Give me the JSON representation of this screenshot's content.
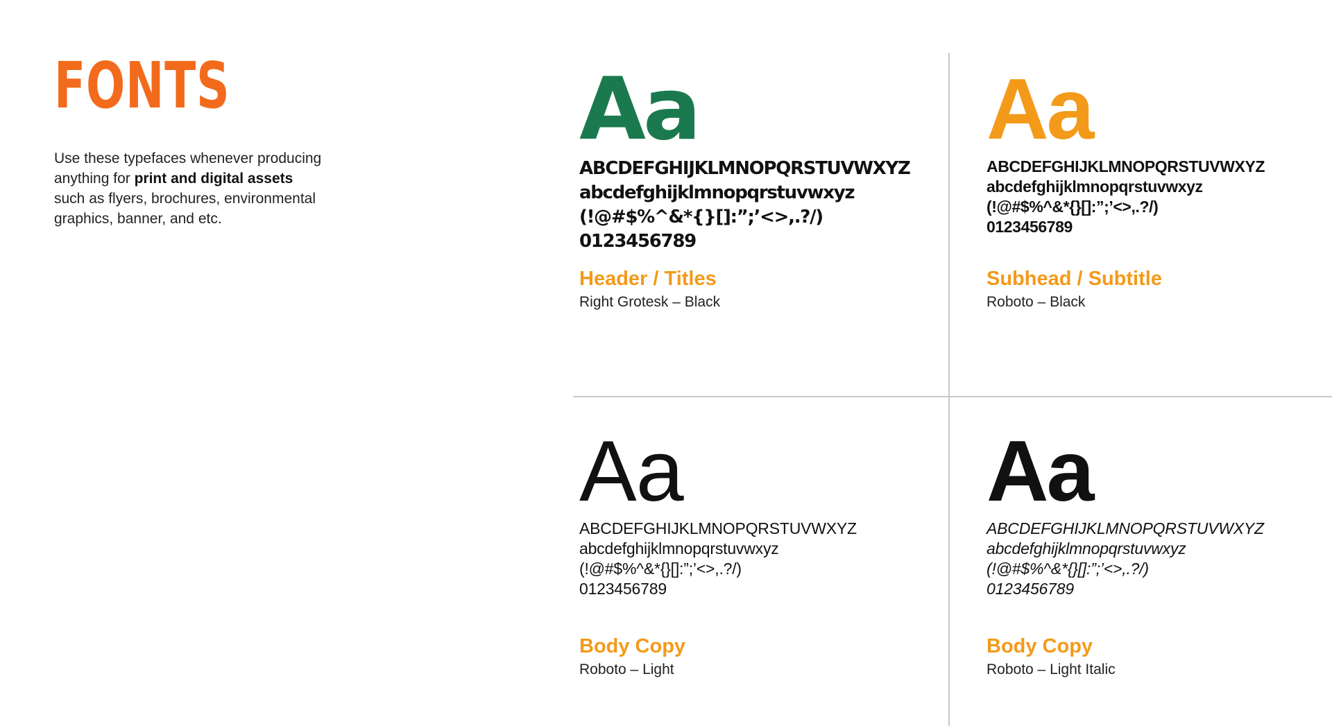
{
  "colors": {
    "title": "#f26b1d",
    "accent": "#f39a1a",
    "green": "#1a7a4e",
    "black": "#111111",
    "divider": "#c8c8c8"
  },
  "header": {
    "title": "FONTS"
  },
  "intro": {
    "line1": "Use these typefaces whenever producing",
    "line2_pre": "anything for ",
    "line2_bold": "print and digital assets",
    "line3": "such as flyers, brochures, environmental",
    "line4": "graphics, banner, and etc."
  },
  "fonts": [
    {
      "sample": "Aa",
      "uppercase": "ABCDEFGHIJKLMNOPQRSTUVWXYZ",
      "lowercase": "abcdefghijklmnopqrstuvwxyz",
      "symbols": "(!@#$%^&*{}[]:”;’<>,.?/)",
      "digits": "0123456789",
      "role": "Header / Titles",
      "name": "Right Grotesk – Black"
    },
    {
      "sample": "Aa",
      "uppercase": "ABCDEFGHIJKLMNOPQRSTUVWXYZ",
      "lowercase": "abcdefghijklmnopqrstuvwxyz",
      "symbols": "(!@#$%^&*{}[]:”;’<>,.?/)",
      "digits": "0123456789",
      "role": "Subhead / Subtitle",
      "name": "Roboto – Black"
    },
    {
      "sample": "Aa",
      "uppercase": "ABCDEFGHIJKLMNOPQRSTUVWXYZ",
      "lowercase": "abcdefghijklmnopqrstuvwxyz",
      "symbols": "(!@#$%^&*{}[]:”;’<>,.?/)",
      "digits": "0123456789",
      "role": "Body Copy",
      "name": "Roboto – Light"
    },
    {
      "sample": "Aa",
      "uppercase": "ABCDEFGHIJKLMNOPQRSTUVWXYZ",
      "lowercase": "abcdefghijklmnopqrstuvwxyz",
      "symbols": "(!@#$%^&*{}[]:”;’<>,.?/)",
      "digits": "0123456789",
      "role": "Body Copy",
      "name": "Roboto – Light Italic"
    }
  ]
}
